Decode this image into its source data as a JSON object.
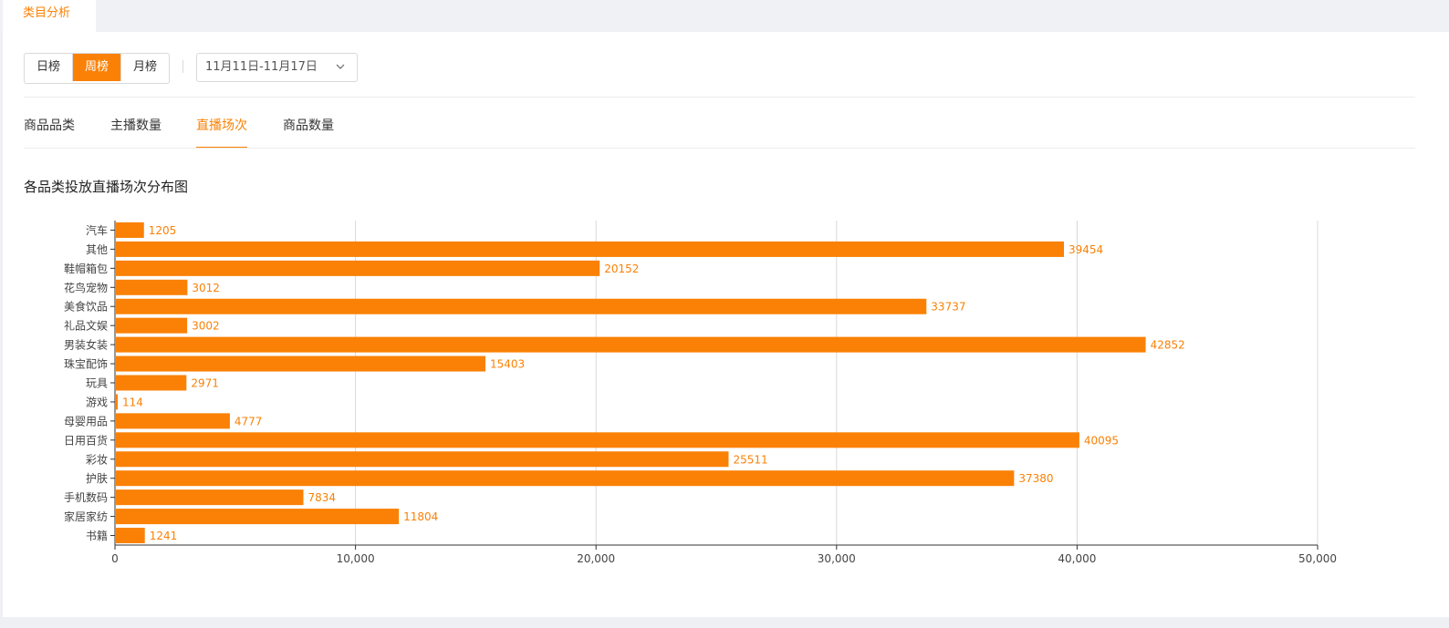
{
  "top_tab": {
    "label": "类目分析"
  },
  "period_buttons": [
    {
      "label": "日榜",
      "active": false
    },
    {
      "label": "周榜",
      "active": true
    },
    {
      "label": "月榜",
      "active": false
    }
  ],
  "date_range": {
    "value": "11月11日-11月17日"
  },
  "sub_tabs": [
    {
      "label": "商品品类",
      "active": false
    },
    {
      "label": "主播数量",
      "active": false
    },
    {
      "label": "直播场次",
      "active": true
    },
    {
      "label": "商品数量",
      "active": false
    }
  ],
  "accent_color": "#fa8105",
  "chart_data": {
    "type": "bar",
    "orientation": "horizontal",
    "title": "各品类投放直播场次分布图",
    "categories": [
      "汽车",
      "其他",
      "鞋帽箱包",
      "花鸟宠物",
      "美食饮品",
      "礼品文娱",
      "男装女装",
      "珠宝配饰",
      "玩具",
      "游戏",
      "母婴用品",
      "日用百货",
      "彩妆",
      "护肤",
      "手机数码",
      "家居家纺",
      "书籍"
    ],
    "values": [
      1205,
      39454,
      20152,
      3012,
      33737,
      3002,
      42852,
      15403,
      2971,
      114,
      4777,
      40095,
      25511,
      37380,
      7834,
      11804,
      1241
    ],
    "xlim": [
      0,
      50000
    ],
    "x_ticks": [
      "0",
      "10,000",
      "20,000",
      "30,000",
      "40,000",
      "50,000"
    ],
    "grid": true,
    "bar_color": "#fa8105"
  }
}
